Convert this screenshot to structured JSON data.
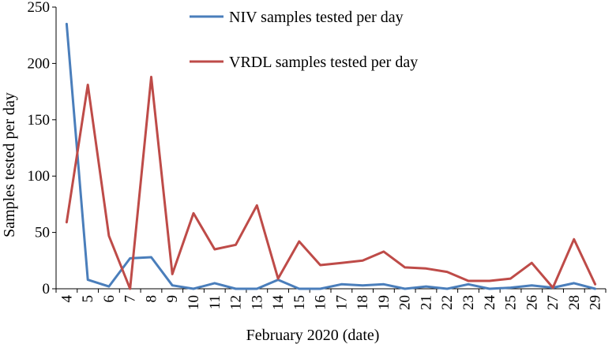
{
  "chart_data": {
    "type": "line",
    "xlabel": "February 2020 (date)",
    "ylabel": "Samples tested per day",
    "ylim": [
      0,
      250
    ],
    "yticks": [
      0,
      50,
      100,
      150,
      200,
      250
    ],
    "grid": false,
    "legend_position": "top-right",
    "categories": [
      "4",
      "5",
      "6",
      "7",
      "8",
      "9",
      "10",
      "11",
      "12",
      "13",
      "14",
      "15",
      "16",
      "17",
      "18",
      "19",
      "20",
      "21",
      "22",
      "23",
      "24",
      "25",
      "26",
      "27",
      "28",
      "29"
    ],
    "series": [
      {
        "name": "NIV samples tested per day",
        "color": "#4a7ebb",
        "values": [
          235,
          8,
          2,
          27,
          28,
          3,
          0,
          5,
          0,
          0,
          8,
          0,
          0,
          4,
          3,
          4,
          0,
          2,
          0,
          4,
          0,
          1,
          3,
          1,
          5,
          0
        ]
      },
      {
        "name": "VRDL samples tested per day",
        "color": "#be4b48",
        "values": [
          59,
          181,
          47,
          0,
          188,
          13,
          67,
          35,
          39,
          74,
          9,
          42,
          21,
          23,
          25,
          33,
          19,
          18,
          15,
          7,
          7,
          9,
          23,
          1,
          44,
          4
        ]
      }
    ]
  }
}
